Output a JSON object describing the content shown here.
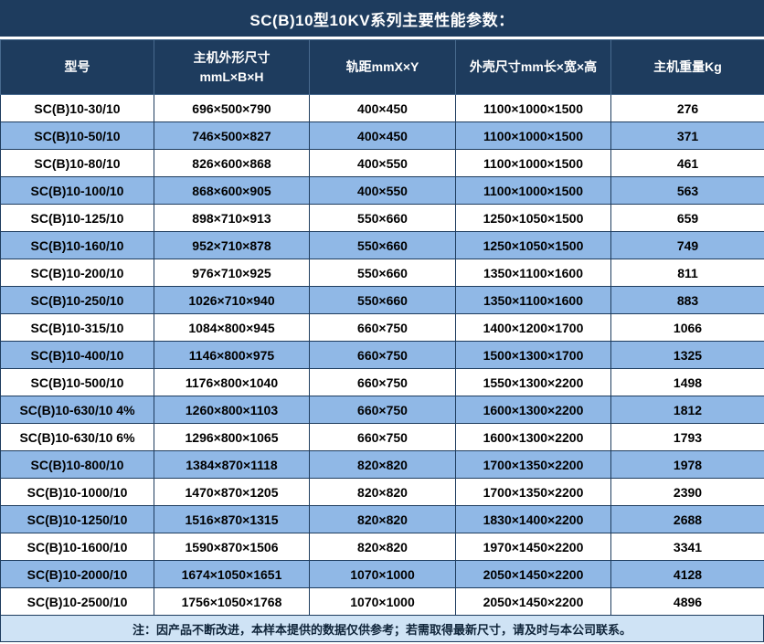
{
  "title": "SC(B)10型10KV系列主要性能参数：",
  "table": {
    "headers": [
      "型号",
      "主机外形尺寸\nmmL×B×H",
      "轨距mmX×Y",
      "外壳尺寸mm长×宽×高",
      "主机重量Kg"
    ],
    "rows": [
      [
        "SC(B)10-30/10",
        "696×500×790",
        "400×450",
        "1100×1000×1500",
        "276"
      ],
      [
        "SC(B)10-50/10",
        "746×500×827",
        "400×450",
        "1100×1000×1500",
        "371"
      ],
      [
        "SC(B)10-80/10",
        "826×600×868",
        "400×550",
        "1100×1000×1500",
        "461"
      ],
      [
        "SC(B)10-100/10",
        "868×600×905",
        "400×550",
        "1100×1000×1500",
        "563"
      ],
      [
        "SC(B)10-125/10",
        "898×710×913",
        "550×660",
        "1250×1050×1500",
        "659"
      ],
      [
        "SC(B)10-160/10",
        "952×710×878",
        "550×660",
        "1250×1050×1500",
        "749"
      ],
      [
        "SC(B)10-200/10",
        "976×710×925",
        "550×660",
        "1350×1100×1600",
        "811"
      ],
      [
        "SC(B)10-250/10",
        "1026×710×940",
        "550×660",
        "1350×1100×1600",
        "883"
      ],
      [
        "SC(B)10-315/10",
        "1084×800×945",
        "660×750",
        "1400×1200×1700",
        "1066"
      ],
      [
        "SC(B)10-400/10",
        "1146×800×975",
        "660×750",
        "1500×1300×1700",
        "1325"
      ],
      [
        "SC(B)10-500/10",
        "1176×800×1040",
        "660×750",
        "1550×1300×2200",
        "1498"
      ],
      [
        "SC(B)10-630/10 4%",
        "1260×800×1103",
        "660×750",
        "1600×1300×2200",
        "1812"
      ],
      [
        "SC(B)10-630/10 6%",
        "1296×800×1065",
        "660×750",
        "1600×1300×2200",
        "1793"
      ],
      [
        "SC(B)10-800/10",
        "1384×870×1118",
        "820×820",
        "1700×1350×2200",
        "1978"
      ],
      [
        "SC(B)10-1000/10",
        "1470×870×1205",
        "820×820",
        "1700×1350×2200",
        "2390"
      ],
      [
        "SC(B)10-1250/10",
        "1516×870×1315",
        "820×820",
        "1830×1400×2200",
        "2688"
      ],
      [
        "SC(B)10-1600/10",
        "1590×870×1506",
        "820×820",
        "1970×1450×2200",
        "3341"
      ],
      [
        "SC(B)10-2000/10",
        "1674×1050×1651",
        "1070×1000",
        "2050×1450×2200",
        "4128"
      ],
      [
        "SC(B)10-2500/10",
        "1756×1050×1768",
        "1070×1000",
        "2050×1450×2200",
        "4896"
      ]
    ]
  },
  "footer_note": "注：因产品不断改进，本样本提供的数据仅供参考；若需取得最新尺寸，请及时与本公司联系。",
  "colors": {
    "header_bg": "#1e3c5e",
    "alt_row_bg": "#90b8e6",
    "footer_bg": "#cfe3f5",
    "border": "#1e3c5e"
  }
}
